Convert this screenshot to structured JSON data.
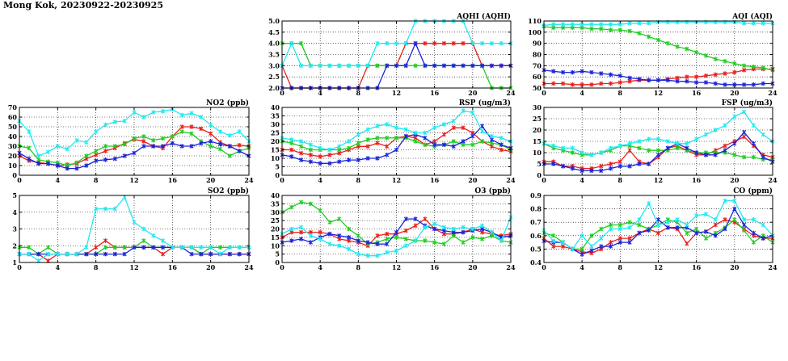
{
  "page_title": "Mong Kok, 20230922-20230925",
  "colors": {
    "red": "#e8201c",
    "green": "#22cc22",
    "blue": "#1a24d8",
    "cyan": "#22e8f0"
  },
  "chart_data": [
    {
      "type": "line",
      "title": "AQHI (AQHI)",
      "ylim": [
        2.0,
        5.0
      ],
      "yticks": [
        "2.0",
        "2.5",
        "3.0",
        "3.5",
        "4.0",
        "4.5",
        "5.0"
      ],
      "xticks": [
        "0",
        "4",
        "8",
        "12",
        "16",
        "20",
        "24"
      ],
      "xlim": [
        0,
        24
      ],
      "grid": true,
      "series": [
        {
          "color": "#e8201c",
          "values": [
            3,
            2,
            2,
            2,
            2,
            2,
            2,
            2,
            2,
            3,
            3,
            3,
            3,
            4,
            4,
            4,
            4,
            4,
            4,
            4,
            4,
            3,
            3,
            3,
            3
          ]
        },
        {
          "color": "#22cc22",
          "values": [
            4,
            4,
            4,
            3,
            3,
            3,
            3,
            3,
            3,
            3,
            3,
            3,
            3,
            3,
            3,
            3,
            3,
            3,
            3,
            3,
            3,
            3,
            2,
            2,
            2
          ]
        },
        {
          "color": "#1a24d8",
          "values": [
            2,
            2,
            2,
            2,
            2,
            2,
            2,
            2,
            2,
            2,
            2,
            3,
            3,
            3,
            4,
            3,
            3,
            3,
            3,
            3,
            3,
            3,
            3,
            3,
            3
          ]
        },
        {
          "color": "#22e8f0",
          "values": [
            3,
            4,
            3,
            3,
            3,
            3,
            3,
            3,
            3,
            3,
            4,
            4,
            4,
            4,
            5,
            5,
            5,
            5,
            5,
            5,
            4,
            4,
            4,
            4,
            4
          ]
        }
      ]
    },
    {
      "type": "line",
      "title": "AQI (AQI)",
      "ylim": [
        50,
        110
      ],
      "yticks": [
        "50",
        "60",
        "70",
        "80",
        "90",
        "100",
        "110"
      ],
      "xticks": [
        "0",
        "4",
        "8",
        "12",
        "16",
        "20",
        "24"
      ],
      "xlim": [
        0,
        24
      ],
      "grid": true,
      "series": [
        {
          "color": "#e8201c",
          "values": [
            54,
            54,
            54,
            53,
            53,
            53,
            54,
            54,
            55,
            56,
            57,
            57,
            57,
            58,
            59,
            60,
            60,
            61,
            62,
            63,
            64,
            66,
            67,
            67,
            67
          ]
        },
        {
          "color": "#22cc22",
          "values": [
            105,
            104,
            104,
            104,
            104,
            103,
            103,
            102,
            102,
            101,
            99,
            96,
            93,
            90,
            87,
            85,
            82,
            79,
            76,
            74,
            72,
            70,
            69,
            68,
            66
          ]
        },
        {
          "color": "#1a24d8",
          "values": [
            66,
            65,
            64,
            64,
            65,
            64,
            63,
            62,
            61,
            59,
            58,
            57,
            57,
            57,
            56,
            56,
            55,
            55,
            54,
            53,
            53,
            53,
            53,
            54,
            54
          ]
        },
        {
          "color": "#22e8f0",
          "values": [
            106,
            107,
            107,
            107,
            107,
            107,
            107,
            107,
            107,
            108,
            108,
            108,
            109,
            109,
            109,
            109,
            109,
            109,
            109,
            109,
            109,
            108,
            108,
            108,
            108
          ]
        }
      ]
    },
    {
      "type": "line",
      "title": "NO2 (ppb)",
      "ylim": [
        0,
        70
      ],
      "yticks": [
        "0",
        "10",
        "20",
        "30",
        "40",
        "50",
        "60",
        "70"
      ],
      "xticks": [
        "0",
        "4",
        "8",
        "12",
        "16",
        "20",
        "24"
      ],
      "xlim": [
        0,
        24
      ],
      "grid": true,
      "series": [
        {
          "color": "#e8201c",
          "values": [
            20,
            15,
            13,
            12,
            10,
            11,
            12,
            17,
            21,
            25,
            28,
            33,
            37,
            35,
            30,
            28,
            40,
            50,
            50,
            48,
            43,
            34,
            30,
            31,
            30
          ]
        },
        {
          "color": "#22cc22",
          "values": [
            30,
            28,
            16,
            14,
            13,
            10,
            13,
            20,
            25,
            30,
            30,
            32,
            38,
            40,
            36,
            38,
            40,
            45,
            43,
            35,
            30,
            27,
            20,
            25,
            28
          ]
        },
        {
          "color": "#1a24d8",
          "values": [
            23,
            17,
            12,
            12,
            10,
            7,
            7,
            10,
            15,
            16,
            17,
            20,
            23,
            30,
            30,
            30,
            33,
            30,
            30,
            33,
            35,
            32,
            30,
            25,
            20
          ]
        },
        {
          "color": "#22e8f0",
          "values": [
            56,
            45,
            20,
            24,
            30,
            27,
            36,
            34,
            45,
            52,
            55,
            56,
            65,
            60,
            65,
            66,
            68,
            62,
            64,
            60,
            52,
            45,
            41,
            45,
            35
          ]
        }
      ]
    },
    {
      "type": "line",
      "title": "RSP (ug/m3)",
      "ylim": [
        0,
        40
      ],
      "yticks": [
        "0",
        "5",
        "10",
        "15",
        "20",
        "25",
        "30",
        "35",
        "40"
      ],
      "xticks": [
        "0",
        "4",
        "8",
        "12",
        "16",
        "20",
        "24"
      ],
      "xlim": [
        0,
        24
      ],
      "grid": true,
      "series": [
        {
          "color": "#e8201c",
          "values": [
            15,
            15,
            13,
            12,
            11,
            12,
            13,
            15,
            17,
            17,
            19,
            17,
            22,
            23,
            22,
            18,
            20,
            24,
            28,
            28,
            25,
            20,
            17,
            15,
            14
          ]
        },
        {
          "color": "#22cc22",
          "values": [
            20,
            19,
            17,
            15,
            15,
            15,
            15,
            16,
            19,
            21,
            22,
            22,
            22,
            22,
            20,
            18,
            17,
            18,
            20,
            18,
            18,
            20,
            19,
            18,
            15
          ]
        },
        {
          "color": "#1a24d8",
          "values": [
            12,
            11,
            9,
            8,
            7,
            7,
            8,
            9,
            9,
            10,
            10,
            12,
            15,
            23,
            24,
            22,
            18,
            18,
            17,
            20,
            23,
            29,
            21,
            18,
            16
          ]
        },
        {
          "color": "#22e8f0",
          "values": [
            22,
            21,
            20,
            18,
            16,
            15,
            17,
            20,
            24,
            27,
            29,
            30,
            28,
            27,
            25,
            25,
            28,
            30,
            32,
            38,
            37,
            26,
            23,
            22,
            20
          ]
        }
      ]
    },
    {
      "type": "line",
      "title": "FSP (ug/m3)",
      "ylim": [
        0,
        30
      ],
      "yticks": [
        "0",
        "5",
        "10",
        "15",
        "20",
        "25",
        "30"
      ],
      "xticks": [
        "0",
        "4",
        "8",
        "12",
        "16",
        "20",
        "24"
      ],
      "xlim": [
        0,
        24
      ],
      "grid": true,
      "series": [
        {
          "color": "#e8201c",
          "values": [
            6,
            6,
            4,
            4,
            3,
            3,
            4,
            5,
            6,
            11,
            6,
            5,
            8,
            12,
            13,
            11,
            9,
            9,
            11,
            13,
            15,
            17,
            13,
            9,
            8
          ]
        },
        {
          "color": "#22cc22",
          "values": [
            14,
            12,
            11,
            10,
            9,
            9,
            10,
            11,
            13,
            13,
            12,
            11,
            11,
            11,
            12,
            11,
            10,
            10,
            10,
            10,
            9,
            8,
            8,
            7,
            7
          ]
        },
        {
          "color": "#1a24d8",
          "values": [
            5,
            5,
            4,
            3,
            2,
            2,
            2,
            3,
            4,
            4,
            5,
            5,
            9,
            12,
            14,
            12,
            10,
            9,
            9,
            11,
            14,
            19,
            14,
            8,
            6
          ]
        },
        {
          "color": "#22e8f0",
          "values": [
            14,
            13,
            12,
            12,
            10,
            9,
            10,
            12,
            13,
            14,
            15,
            16,
            16,
            15,
            14,
            14,
            16,
            18,
            20,
            22,
            26,
            28,
            22,
            18,
            15
          ]
        }
      ]
    },
    {
      "type": "line",
      "title": "SO2 (ppb)",
      "ylim": [
        1,
        5
      ],
      "yticks": [
        "1",
        "2",
        "3",
        "4",
        "5"
      ],
      "xticks": [
        "0",
        "4",
        "8",
        "12",
        "16",
        "20",
        "24"
      ],
      "xlim": [
        0,
        24
      ],
      "grid": true,
      "series": [
        {
          "color": "#e8201c",
          "values": [
            1.5,
            1.5,
            1.5,
            1.1,
            1.5,
            1.5,
            1.5,
            1.5,
            1.9,
            2.3,
            1.9,
            1.9,
            1.9,
            1.9,
            1.9,
            1.5,
            1.9,
            1.9,
            1.9,
            1.5,
            1.5,
            1.5,
            1.5,
            1.5,
            1.5
          ]
        },
        {
          "color": "#22cc22",
          "values": [
            1.9,
            1.9,
            1.5,
            1.9,
            1.5,
            1.5,
            1.5,
            1.5,
            1.5,
            1.9,
            1.9,
            1.9,
            1.9,
            2.3,
            1.9,
            1.9,
            1.9,
            1.9,
            1.9,
            1.5,
            1.9,
            1.9,
            1.9,
            1.9,
            1.9
          ]
        },
        {
          "color": "#1a24d8",
          "values": [
            1.5,
            1.5,
            1.5,
            1.5,
            1.5,
            1.5,
            1.5,
            1.5,
            1.5,
            1.5,
            1.5,
            1.5,
            1.9,
            1.9,
            1.9,
            1.9,
            1.9,
            1.9,
            1.5,
            1.5,
            1.5,
            1.5,
            1.5,
            1.5,
            1.5
          ]
        },
        {
          "color": "#22e8f0",
          "values": [
            1.5,
            1.5,
            1.1,
            1.5,
            1.5,
            1.5,
            1.5,
            1.9,
            4.2,
            4.2,
            4.2,
            4.9,
            3.4,
            3.0,
            2.6,
            2.3,
            1.9,
            1.9,
            1.9,
            1.9,
            1.9,
            1.5,
            1.9,
            1.9,
            1.9
          ]
        }
      ]
    },
    {
      "type": "line",
      "title": "O3 (ppb)",
      "ylim": [
        0,
        40
      ],
      "yticks": [
        "0",
        "5",
        "10",
        "15",
        "20",
        "25",
        "30",
        "35",
        "40"
      ],
      "xticks": [
        "0",
        "4",
        "8",
        "12",
        "16",
        "20",
        "24"
      ],
      "xlim": [
        0,
        24
      ],
      "grid": true,
      "series": [
        {
          "color": "#e8201c",
          "values": [
            15,
            18,
            18,
            18,
            18,
            17,
            14,
            13,
            12,
            10,
            16,
            17,
            17,
            19,
            22,
            26,
            20,
            17,
            17,
            18,
            20,
            18,
            17,
            16,
            17
          ]
        },
        {
          "color": "#22cc22",
          "values": [
            30,
            33,
            36,
            35,
            31,
            24,
            26,
            20,
            16,
            11,
            12,
            14,
            15,
            14,
            13,
            13,
            12,
            11,
            16,
            12,
            15,
            14,
            16,
            13,
            12
          ]
        },
        {
          "color": "#1a24d8",
          "values": [
            12,
            13,
            14,
            12,
            15,
            17,
            16,
            15,
            13,
            12,
            11,
            11,
            18,
            26,
            26,
            22,
            20,
            19,
            18,
            18,
            19,
            20,
            18,
            15,
            16
          ]
        },
        {
          "color": "#22e8f0",
          "values": [
            17,
            20,
            21,
            16,
            14,
            11,
            10,
            8,
            5,
            4,
            4,
            6,
            7,
            10,
            13,
            21,
            23,
            21,
            20,
            21,
            20,
            22,
            18,
            13,
            27
          ]
        }
      ]
    },
    {
      "type": "line",
      "title": "CO (ppm)",
      "ylim": [
        0.4,
        0.9
      ],
      "yticks": [
        "0.4",
        "0.5",
        "0.6",
        "0.7",
        "0.8",
        "0.9"
      ],
      "xticks": [
        "0",
        "4",
        "8",
        "12",
        "16",
        "20",
        "24"
      ],
      "xlim": [
        0,
        24
      ],
      "grid": true,
      "series": [
        {
          "color": "#e8201c",
          "values": [
            0.58,
            0.52,
            0.52,
            0.5,
            0.48,
            0.47,
            0.5,
            0.55,
            0.58,
            0.58,
            0.62,
            0.65,
            0.62,
            0.66,
            0.65,
            0.54,
            0.62,
            0.63,
            0.68,
            0.72,
            0.7,
            0.65,
            0.6,
            0.58,
            0.58
          ]
        },
        {
          "color": "#22cc22",
          "values": [
            0.62,
            0.6,
            0.55,
            0.5,
            0.5,
            0.6,
            0.65,
            0.68,
            0.68,
            0.7,
            0.68,
            0.65,
            0.68,
            0.72,
            0.7,
            0.62,
            0.65,
            0.58,
            0.62,
            0.66,
            0.72,
            0.64,
            0.55,
            0.6,
            0.55
          ]
        },
        {
          "color": "#1a24d8",
          "values": [
            0.56,
            0.55,
            0.55,
            0.5,
            0.46,
            0.49,
            0.52,
            0.52,
            0.55,
            0.55,
            0.62,
            0.64,
            0.72,
            0.66,
            0.66,
            0.66,
            0.62,
            0.63,
            0.6,
            0.65,
            0.8,
            0.68,
            0.62,
            0.58,
            0.6
          ]
        },
        {
          "color": "#22e8f0",
          "values": [
            0.64,
            0.56,
            0.55,
            0.5,
            0.6,
            0.52,
            0.58,
            0.65,
            0.65,
            0.66,
            0.72,
            0.84,
            0.68,
            0.7,
            0.72,
            0.68,
            0.75,
            0.76,
            0.72,
            0.86,
            0.86,
            0.72,
            0.72,
            0.68,
            0.6
          ]
        }
      ]
    }
  ]
}
